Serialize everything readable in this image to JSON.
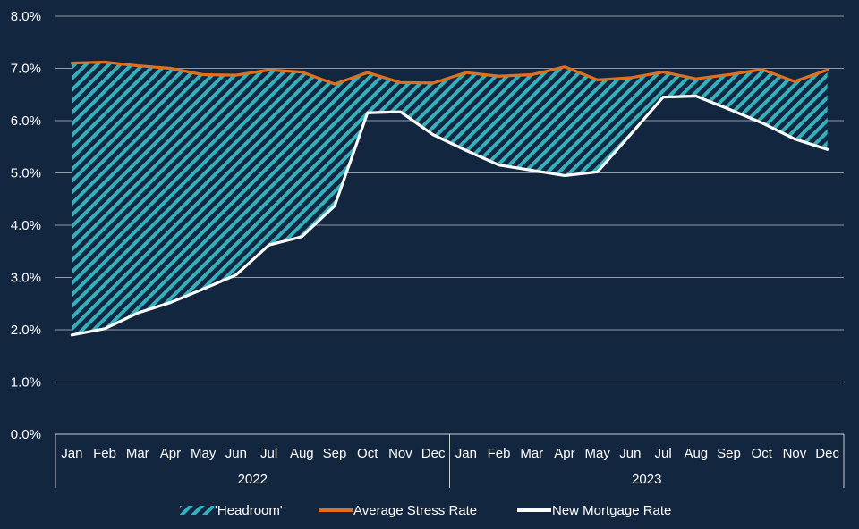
{
  "colors": {
    "background": "#13263f",
    "grid": "#8f9bab",
    "headroom": "#2fb3bf",
    "stress": "#e0701e",
    "mortgage": "#ffffff",
    "axis": "#c8ced6"
  },
  "chart_data": {
    "type": "area",
    "x": [
      "Jan",
      "Feb",
      "Mar",
      "Apr",
      "May",
      "Jun",
      "Jul",
      "Aug",
      "Sep",
      "Oct",
      "Nov",
      "Dec",
      "Jan",
      "Feb",
      "Mar",
      "Apr",
      "May",
      "Jun",
      "Jul",
      "Aug",
      "Sep",
      "Oct",
      "Nov",
      "Dec"
    ],
    "groups": [
      {
        "label": "2022",
        "months": 12
      },
      {
        "label": "2023",
        "months": 12
      }
    ],
    "ylim": [
      0,
      8
    ],
    "yticks": [
      {
        "value": 0,
        "label": "0.0%"
      },
      {
        "value": 1,
        "label": "1.0%"
      },
      {
        "value": 2,
        "label": "2.0%"
      },
      {
        "value": 3,
        "label": "3.0%"
      },
      {
        "value": 4,
        "label": "4.0%"
      },
      {
        "value": 5,
        "label": "5.0%"
      },
      {
        "value": 6,
        "label": "6.0%"
      },
      {
        "value": 7,
        "label": "7.0%"
      },
      {
        "value": 8,
        "label": "8.0%"
      }
    ],
    "grid": true,
    "legend_position": "bottom",
    "series": [
      {
        "name": "'Headroom'",
        "kind": "hatched-band",
        "between": [
          "Average Stress Rate",
          "New Mortgage Rate"
        ]
      },
      {
        "name": "Average Stress Rate",
        "kind": "line",
        "values": [
          7.1,
          7.12,
          7.05,
          7.0,
          6.88,
          6.87,
          6.97,
          6.93,
          6.7,
          6.92,
          6.73,
          6.72,
          6.92,
          6.85,
          6.88,
          7.03,
          6.78,
          6.82,
          6.93,
          6.8,
          6.88,
          6.98,
          6.75,
          6.97
        ]
      },
      {
        "name": "New Mortgage Rate",
        "kind": "line",
        "values": [
          1.9,
          2.02,
          2.32,
          2.52,
          2.78,
          3.05,
          3.62,
          3.78,
          4.37,
          6.15,
          6.17,
          5.73,
          5.43,
          5.15,
          5.05,
          4.95,
          5.02,
          5.73,
          6.45,
          6.47,
          6.22,
          5.96,
          5.65,
          5.45
        ]
      }
    ]
  }
}
